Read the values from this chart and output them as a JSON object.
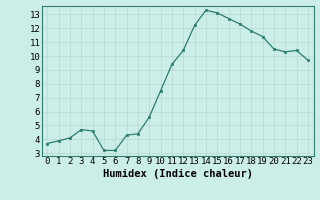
{
  "x": [
    0,
    1,
    2,
    3,
    4,
    5,
    6,
    7,
    8,
    9,
    10,
    11,
    12,
    13,
    14,
    15,
    16,
    17,
    18,
    19,
    20,
    21,
    22,
    23
  ],
  "y": [
    3.7,
    3.9,
    4.1,
    4.7,
    4.6,
    3.2,
    3.2,
    4.3,
    4.4,
    5.6,
    7.5,
    9.4,
    10.4,
    12.2,
    13.3,
    13.1,
    12.7,
    12.3,
    11.8,
    11.4,
    10.5,
    10.3,
    10.4,
    9.7
  ],
  "xlabel": "Humidex (Indice chaleur)",
  "ylim_min": 2.8,
  "ylim_max": 13.6,
  "xlim_min": -0.5,
  "xlim_max": 23.5,
  "yticks": [
    3,
    4,
    5,
    6,
    7,
    8,
    9,
    10,
    11,
    12,
    13
  ],
  "xticks": [
    0,
    1,
    2,
    3,
    4,
    5,
    6,
    7,
    8,
    9,
    10,
    11,
    12,
    13,
    14,
    15,
    16,
    17,
    18,
    19,
    20,
    21,
    22,
    23
  ],
  "line_color": "#2e7d6e",
  "marker_color": "#2e7d6e",
  "bg_color": "#cceee8",
  "grid_color": "#b8d8d2",
  "xlabel_fontsize": 7.5,
  "tick_fontsize": 6.5
}
